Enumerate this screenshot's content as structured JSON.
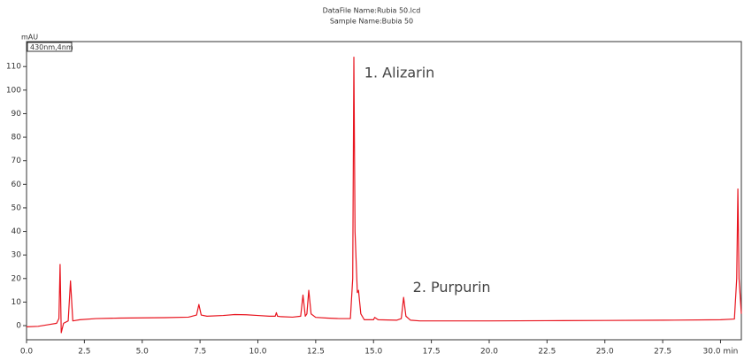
{
  "chart_data": {
    "type": "line",
    "header_lines": [
      "DataFile Name:Rubia 50.lcd",
      "Sample Name:Bubia 50"
    ],
    "y_label": "mAU",
    "legend_label": "430nm,4nm",
    "annotations": [
      {
        "text": "1. Alizarin",
        "x": 14.6,
        "y": 107
      },
      {
        "text": "2. Purpurin",
        "x": 16.7,
        "y": 16
      }
    ],
    "color": "#e8141e",
    "x": [
      0,
      0.5,
      1.0,
      1.3,
      1.4,
      1.45,
      1.5,
      1.6,
      1.8,
      1.9,
      2.0,
      2.3,
      3,
      4,
      5,
      6,
      7,
      7.35,
      7.45,
      7.55,
      7.8,
      8.5,
      9,
      9.5,
      10,
      10.5,
      10.75,
      10.8,
      10.85,
      11,
      11.5,
      11.85,
      11.95,
      12.05,
      12.12,
      12.2,
      12.3,
      12.5,
      13,
      13.5,
      14.0,
      14.1,
      14.15,
      14.2,
      14.3,
      14.35,
      14.45,
      14.6,
      15,
      15.05,
      15.2,
      16,
      16.2,
      16.3,
      16.4,
      16.6,
      17,
      18,
      20,
      22.5,
      25,
      27.5,
      30,
      30.6,
      30.7,
      30.75,
      30.8,
      30.9
    ],
    "values": [
      -0.5,
      -0.3,
      0.5,
      1,
      3,
      26,
      -3,
      1,
      2,
      19,
      2,
      2.5,
      3,
      3.2,
      3.3,
      3.4,
      3.6,
      4.5,
      9,
      4.5,
      4,
      4.3,
      4.7,
      4.6,
      4.3,
      4,
      4,
      5.5,
      4,
      3.8,
      3.6,
      4,
      13,
      4,
      5,
      15,
      5,
      3.5,
      3.2,
      3,
      3,
      20,
      114,
      40,
      14,
      15,
      5,
      2.5,
      2.5,
      3.5,
      2.5,
      2.3,
      3,
      12,
      4,
      2.3,
      2,
      2,
      2,
      2.1,
      2.2,
      2.3,
      2.5,
      2.8,
      20,
      58,
      20,
      5
    ],
    "xlim": [
      0,
      30.9
    ],
    "ylim": [
      -6,
      120.6
    ],
    "xticks": [
      {
        "value": 0,
        "label": "0.0"
      },
      {
        "value": 2.5,
        "label": "2.5"
      },
      {
        "value": 5,
        "label": "5.0"
      },
      {
        "value": 7.5,
        "label": "7.5"
      },
      {
        "value": 10,
        "label": "10.0"
      },
      {
        "value": 12.5,
        "label": "12.5"
      },
      {
        "value": 15,
        "label": "15.0"
      },
      {
        "value": 17.5,
        "label": "17.5"
      },
      {
        "value": 20,
        "label": "20.0"
      },
      {
        "value": 22.5,
        "label": "22.5"
      },
      {
        "value": 25,
        "label": "25.0"
      },
      {
        "value": 27.5,
        "label": "27.5"
      },
      {
        "value": 30,
        "label": "30.0 min"
      }
    ],
    "yticks": [
      0,
      10,
      20,
      30,
      40,
      50,
      60,
      70,
      80,
      90,
      100,
      110
    ]
  }
}
